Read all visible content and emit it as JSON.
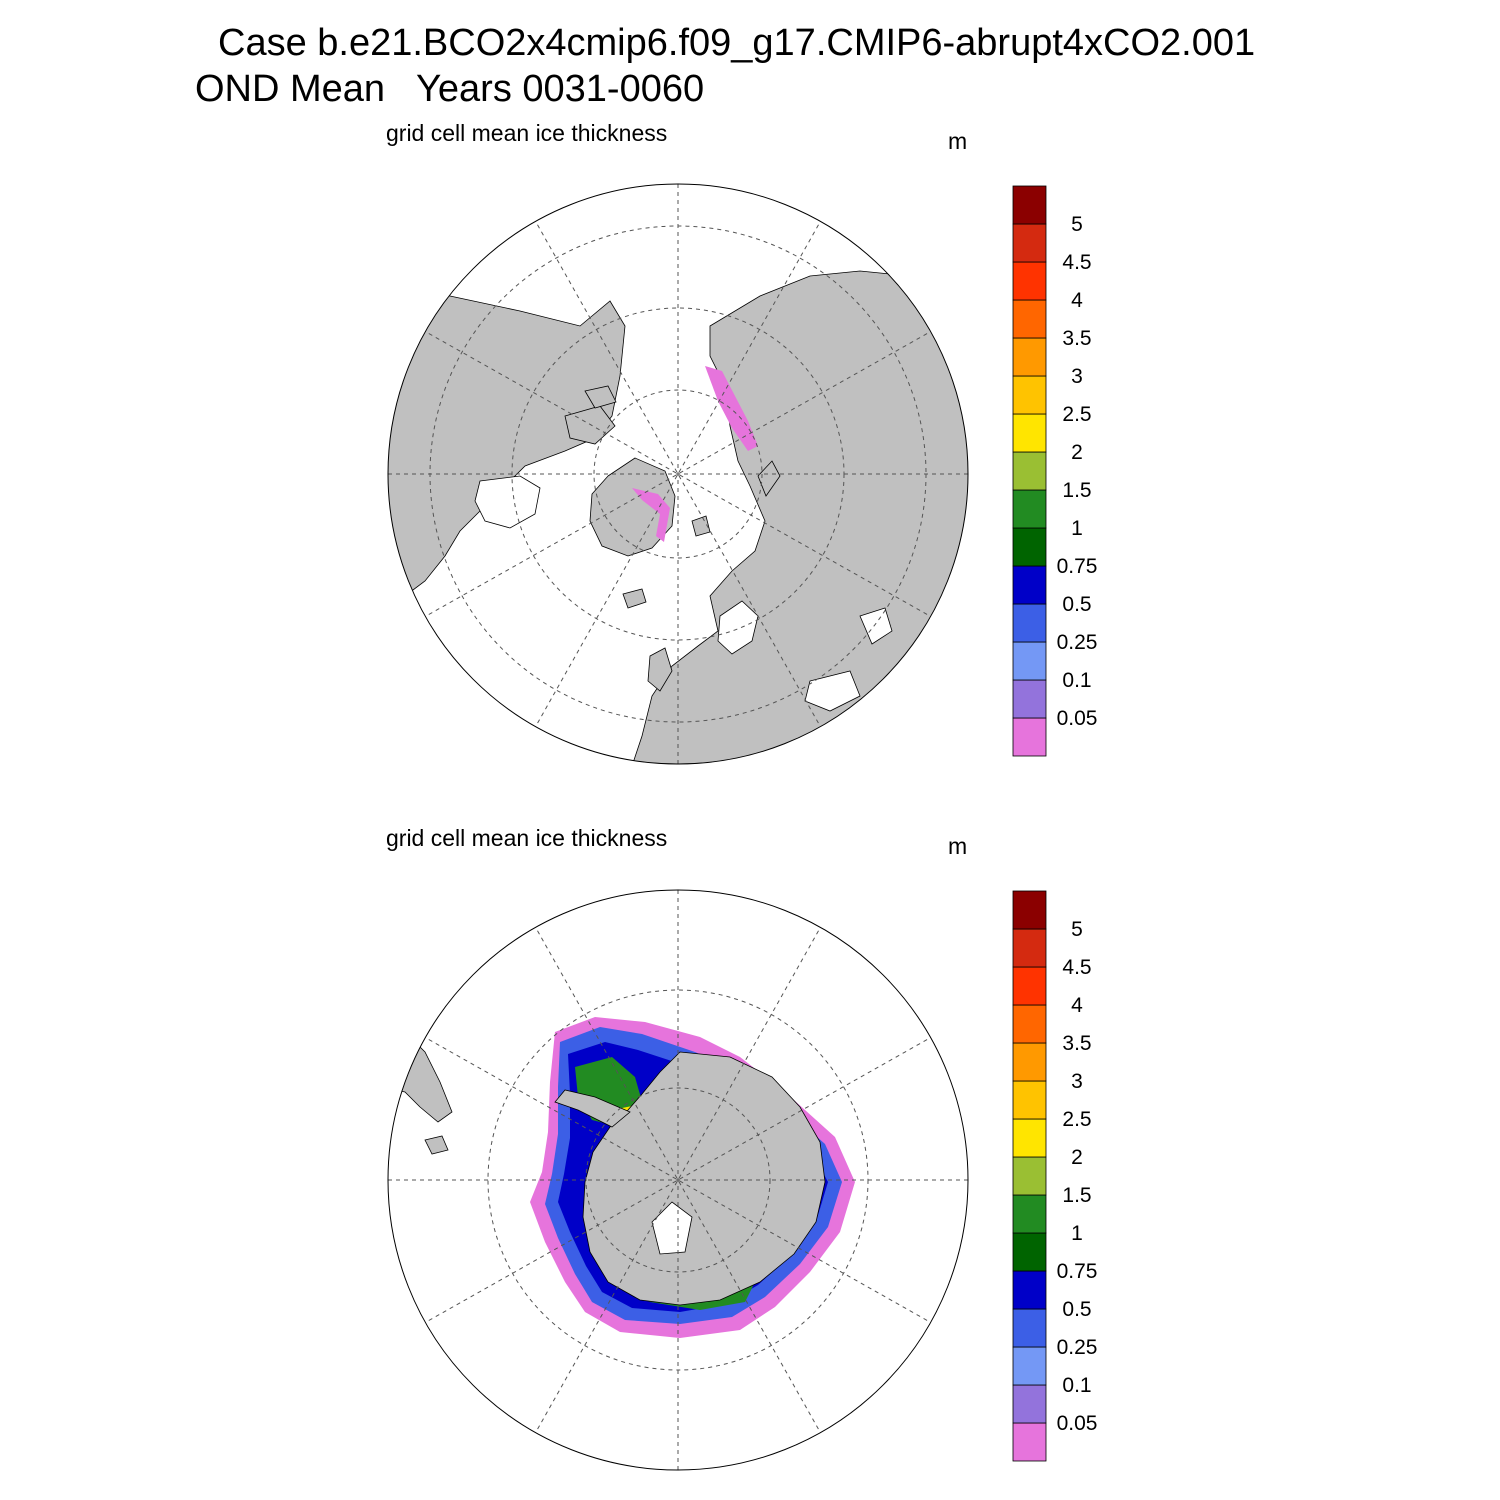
{
  "header": {
    "line1": "Case b.e21.BCO2x4cmip6.f09_g17.CMIP6-abrupt4xCO2.001",
    "line2": "OND Mean   Years 0031-0060"
  },
  "panels": [
    {
      "title": "grid cell mean ice thickness",
      "units": "m",
      "hemisphere": "north"
    },
    {
      "title": "grid cell mean ice thickness",
      "units": "m",
      "hemisphere": "south"
    }
  ],
  "colorbar": {
    "labels": [
      "0.05",
      "0.1",
      "0.25",
      "0.5",
      "0.75",
      "1",
      "1.5",
      "2",
      "2.5",
      "3",
      "3.5",
      "4",
      "4.5",
      "5"
    ],
    "colors": [
      "#e674dc",
      "#9373dc",
      "#7498f5",
      "#3c5fe6",
      "#0000c8",
      "#006400",
      "#228b22",
      "#9abf33",
      "#ffe500",
      "#ffc300",
      "#ff9900",
      "#ff6600",
      "#ff3300",
      "#d42a10",
      "#8b0000"
    ]
  },
  "colors": {
    "land": "#c0c0c0",
    "ocean": "#ffffff",
    "outline": "#000000"
  }
}
